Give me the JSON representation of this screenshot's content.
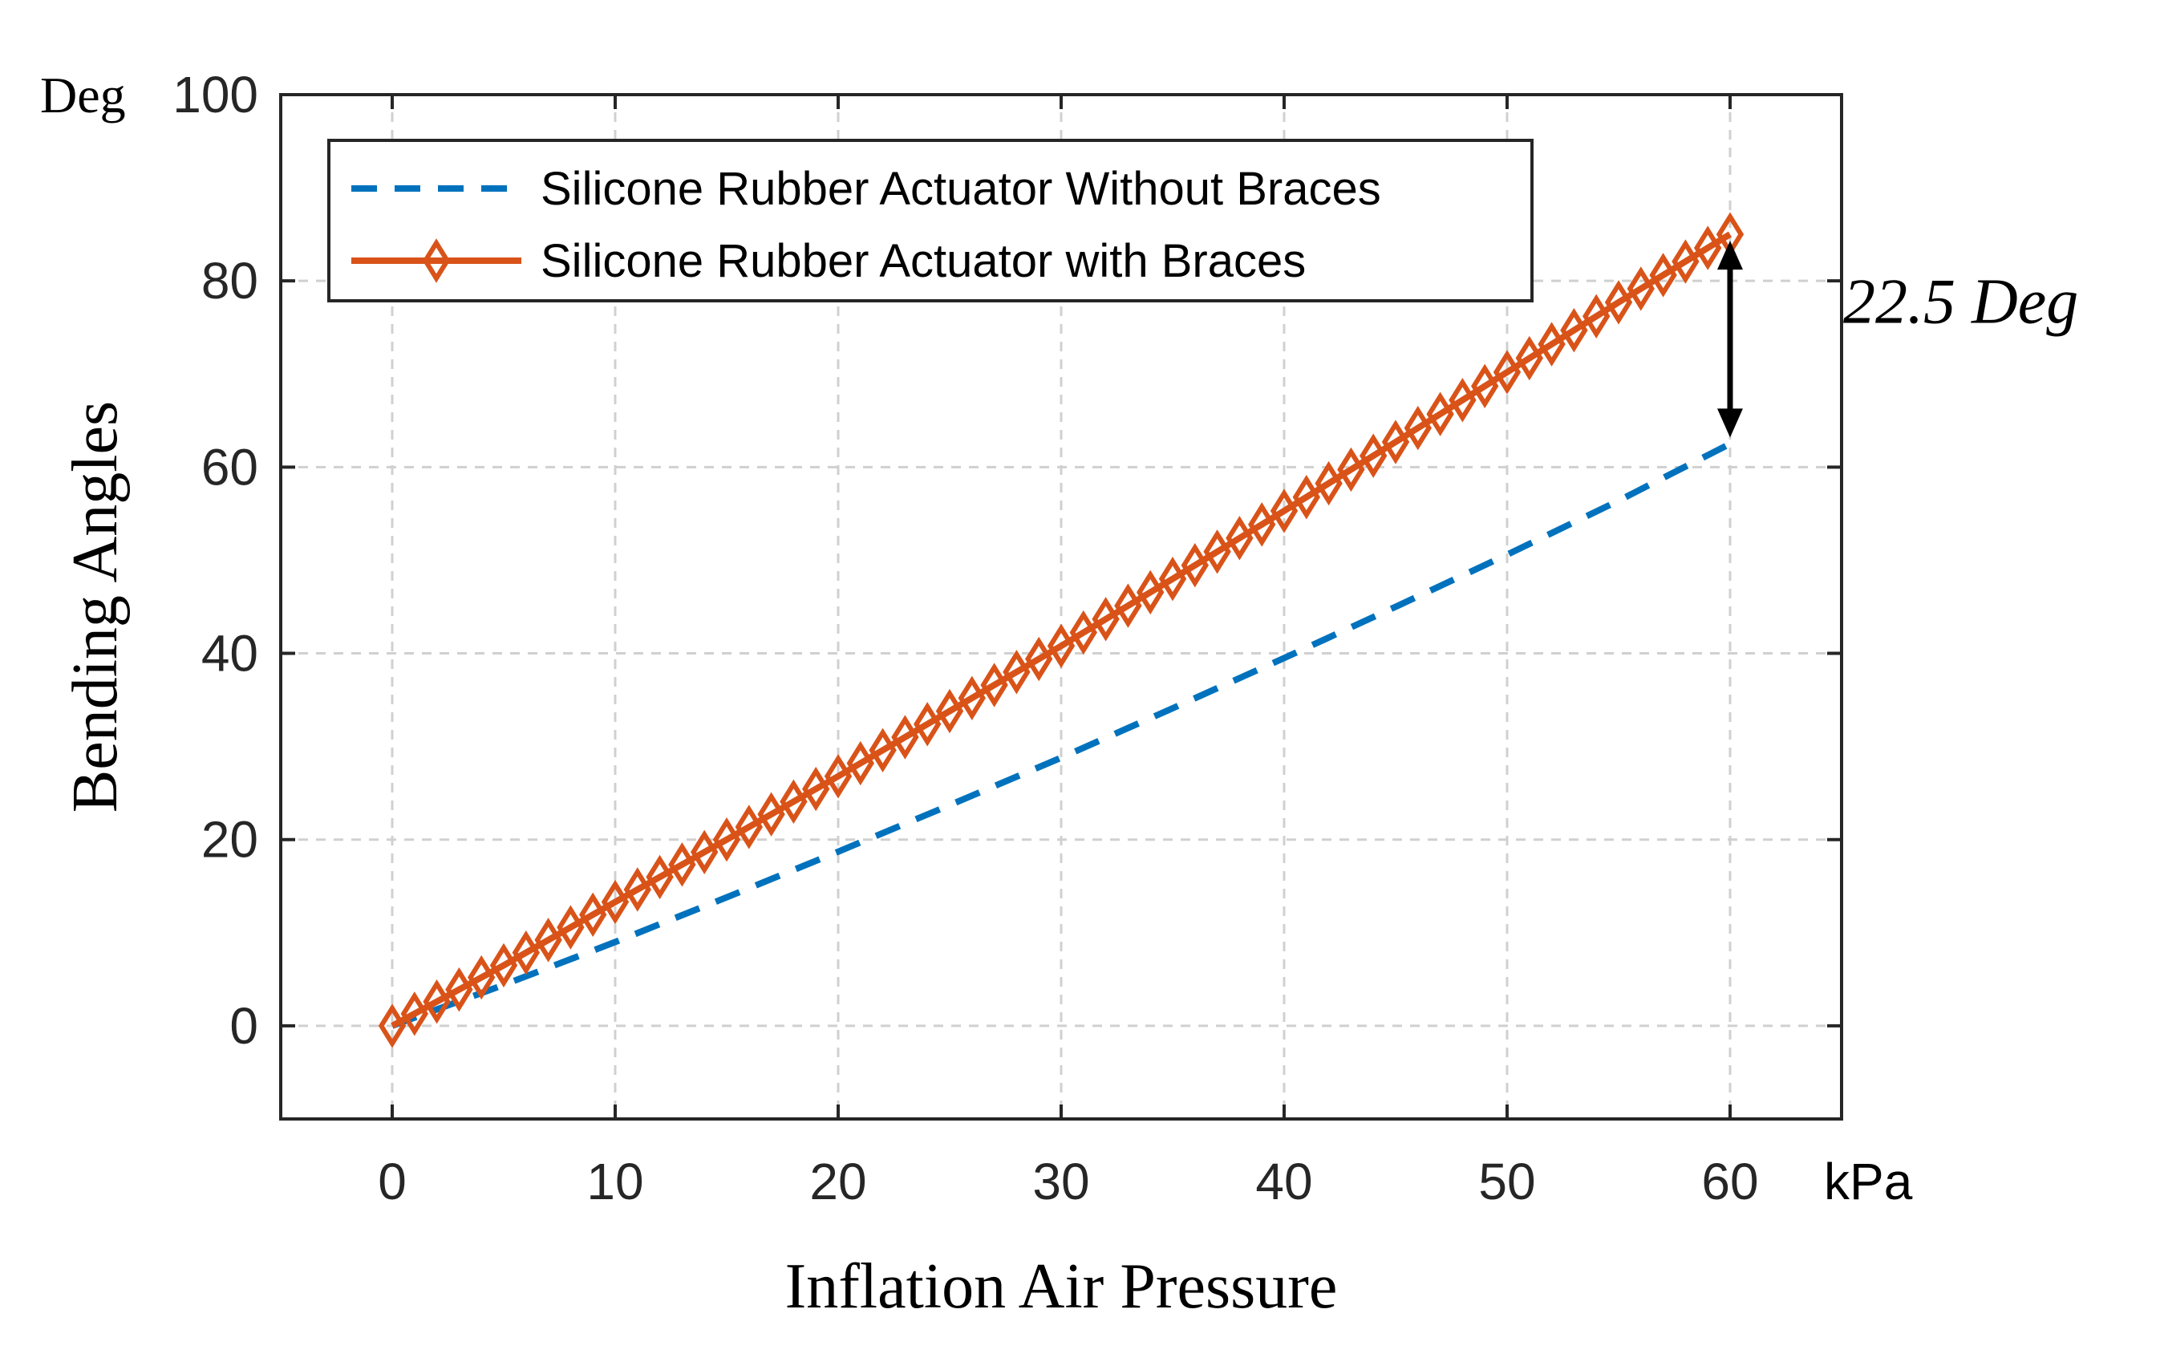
{
  "chart_data": {
    "type": "line",
    "title": "",
    "xlabel": "Inflation Air Pressure",
    "ylabel": "Bending Angles",
    "x_unit": "kPa",
    "y_unit": "Deg",
    "xlim": [
      -5,
      65
    ],
    "ylim": [
      -10,
      100
    ],
    "xticks": [
      0,
      10,
      20,
      30,
      40,
      50,
      60
    ],
    "yticks": [
      0,
      20,
      40,
      60,
      80,
      100
    ],
    "grid": true,
    "legend_position": "top-left",
    "series": [
      {
        "name": "Silicone Rubber Actuator Without Braces",
        "color": "#0072BD",
        "style": "dashed",
        "marker": "none",
        "x": [
          0,
          5,
          10,
          15,
          20,
          25,
          30,
          35,
          40,
          45,
          50,
          55,
          60
        ],
        "y": [
          0,
          4.4,
          9.0,
          13.8,
          18.7,
          23.7,
          28.8,
          34.1,
          39.5,
          45.0,
          50.6,
          56.4,
          62.5
        ]
      },
      {
        "name": "Silicone Rubber Actuator with Braces",
        "color": "#D95319",
        "style": "solid",
        "marker": "diamond",
        "x": [
          0,
          5,
          10,
          15,
          20,
          25,
          30,
          35,
          40,
          45,
          50,
          55,
          60
        ],
        "y": [
          0,
          6.5,
          13.3,
          20.0,
          26.8,
          33.8,
          40.8,
          48.0,
          55.3,
          62.7,
          70.2,
          77.7,
          85.0
        ]
      }
    ],
    "annotations": [
      {
        "text": "22.5 Deg",
        "x": 60,
        "y_from": 62.5,
        "y_to": 85.0
      }
    ]
  }
}
